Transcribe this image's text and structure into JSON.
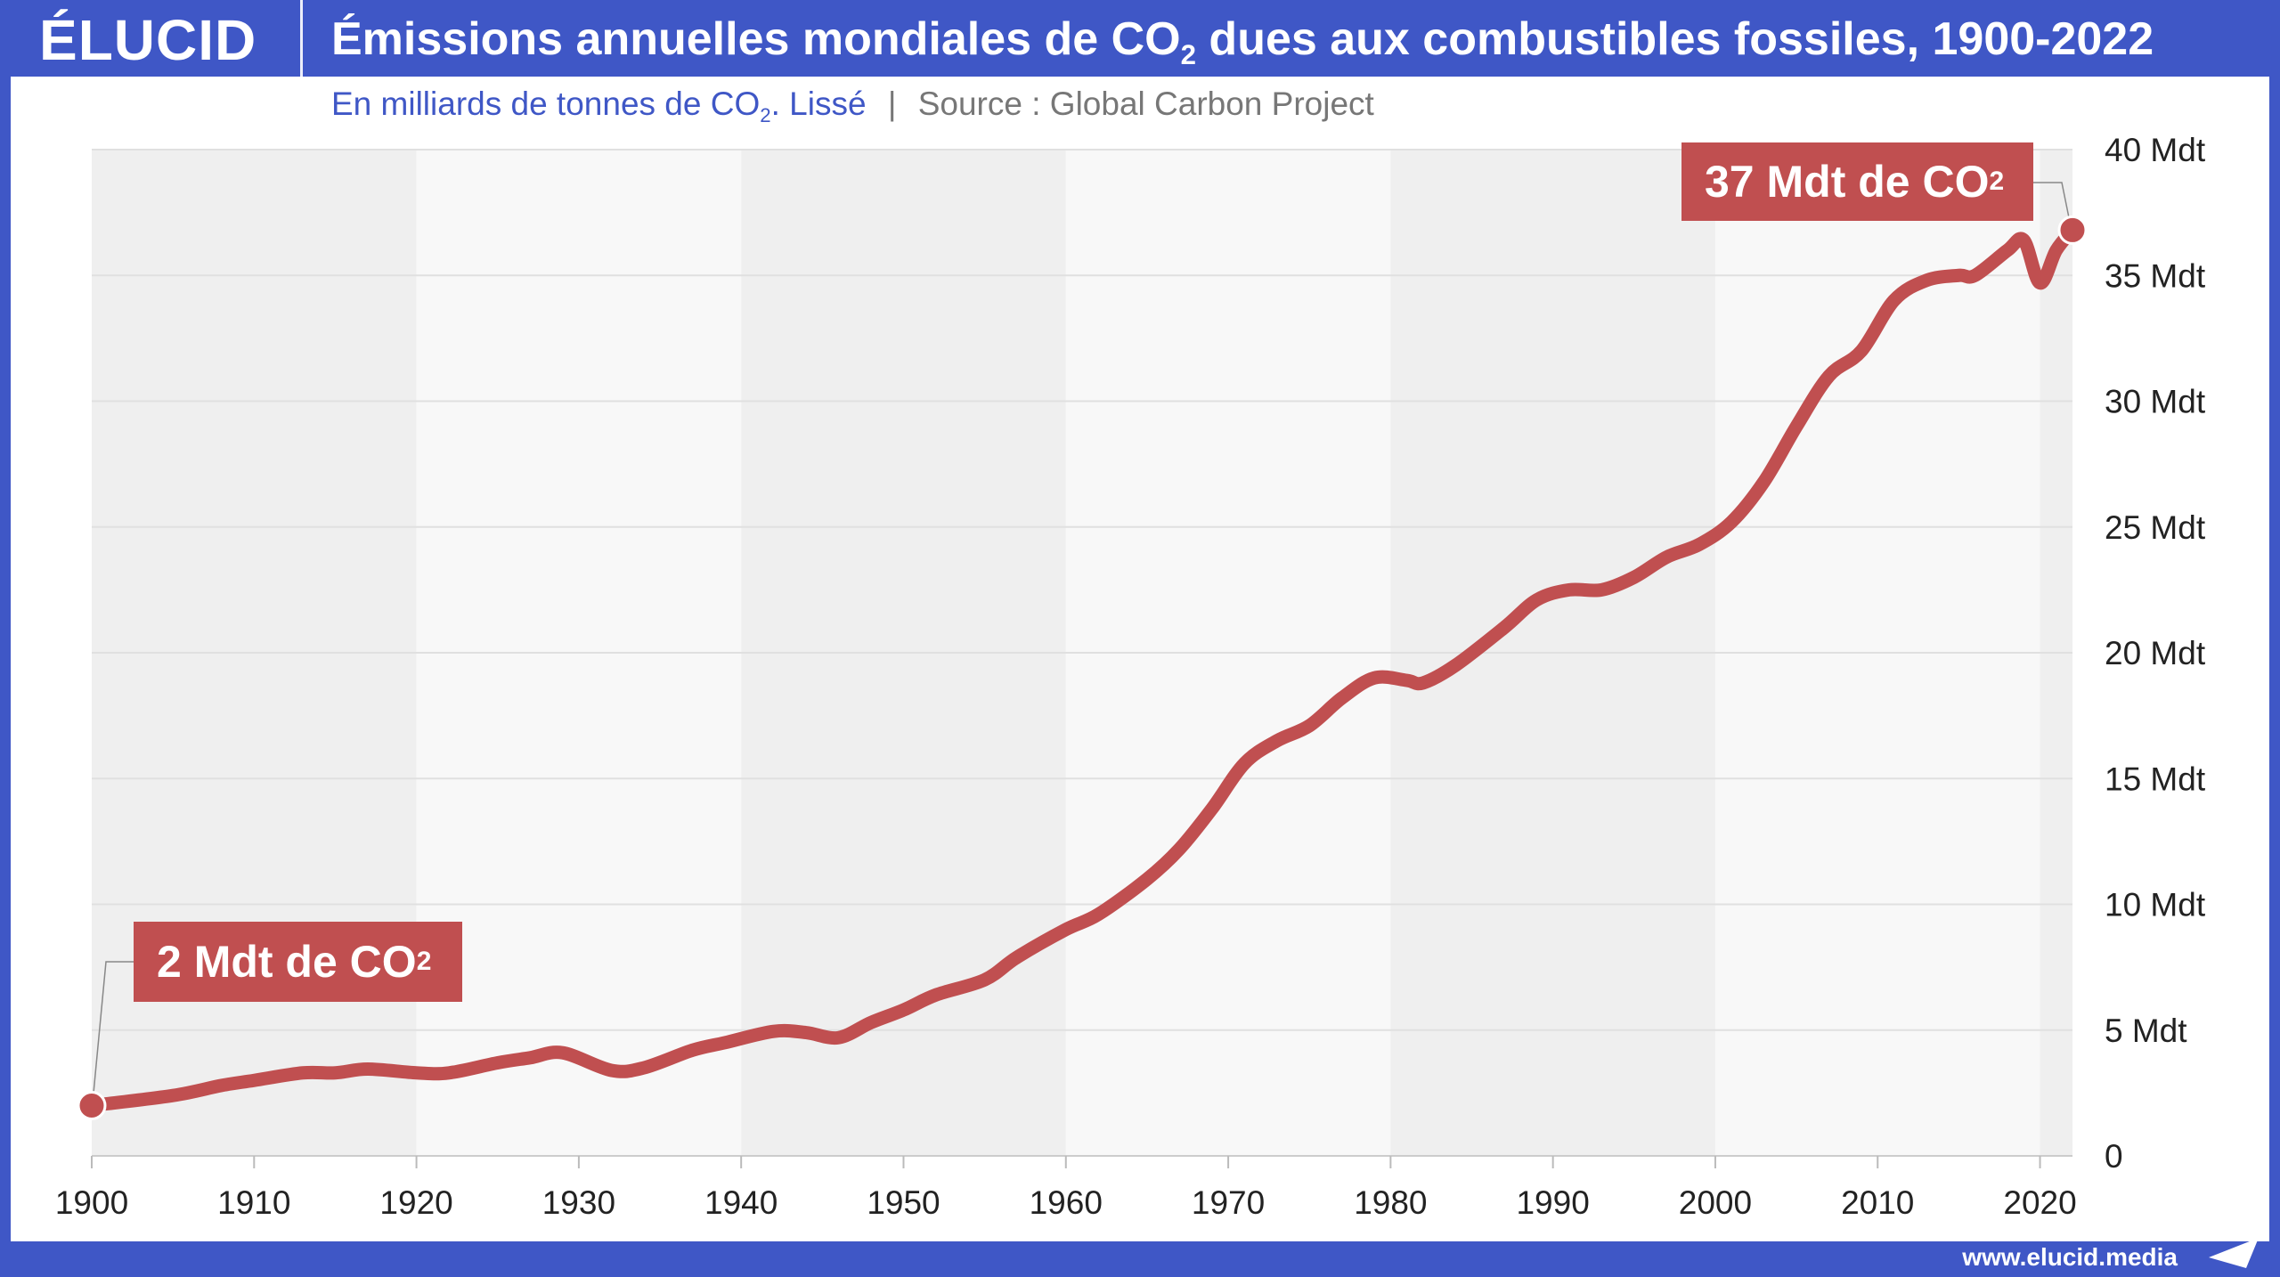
{
  "header": {
    "logo": "ÉLUCID",
    "title_pre": "Émissions annuelles mondiales de CO",
    "title_sub": "2",
    "title_post": " dues aux combustibles fossiles, 1900-2022"
  },
  "subtitle": {
    "pre": "En milliards de tonnes de CO",
    "sub": "2",
    "post": ". Lissé",
    "separator": "|",
    "source": "Source : Global Carbon Project"
  },
  "footer": {
    "url": "www.elucid.media"
  },
  "colors": {
    "brand": "#3f57c6",
    "line": "#c04f50"
  },
  "chart_data": {
    "type": "line",
    "title": "Émissions annuelles mondiales de CO2 dues aux combustibles fossiles, 1900-2022",
    "xlim": [
      1900,
      2022
    ],
    "ylim": [
      0,
      40
    ],
    "grid": true,
    "x_ticks": [
      "1900",
      "1910",
      "1920",
      "1930",
      "1940",
      "1950",
      "1960",
      "1970",
      "1980",
      "1990",
      "2000",
      "2010",
      "2020"
    ],
    "y_ticks": [
      "0",
      "5 Mdt",
      "10 Mdt",
      "15 Mdt",
      "20 Mdt",
      "25 Mdt",
      "30 Mdt",
      "35 Mdt",
      "40 Mdt"
    ],
    "x": [
      1900,
      1905,
      1908,
      1910,
      1913,
      1915,
      1917,
      1920,
      1922,
      1925,
      1927,
      1929,
      1932,
      1934,
      1937,
      1939,
      1942,
      1944,
      1946,
      1948,
      1950,
      1952,
      1955,
      1957,
      1960,
      1962,
      1965,
      1967,
      1969,
      1971,
      1973,
      1975,
      1977,
      1979,
      1981,
      1982,
      1984,
      1987,
      1989,
      1991,
      1993,
      1995,
      1997,
      1999,
      2001,
      2003,
      2005,
      2007,
      2009,
      2011,
      2013,
      2015,
      2016,
      2018,
      2019,
      2020,
      2021,
      2022
    ],
    "y": [
      2.0,
      2.4,
      2.8,
      3.0,
      3.3,
      3.3,
      3.45,
      3.3,
      3.3,
      3.7,
      3.9,
      4.1,
      3.4,
      3.5,
      4.2,
      4.5,
      4.95,
      4.9,
      4.7,
      5.3,
      5.8,
      6.4,
      7.0,
      7.9,
      9.0,
      9.6,
      11.0,
      12.2,
      13.8,
      15.6,
      16.5,
      17.1,
      18.2,
      19.0,
      18.9,
      18.8,
      19.5,
      21.0,
      22.1,
      22.5,
      22.5,
      23.0,
      23.8,
      24.3,
      25.2,
      26.8,
      29.0,
      31.0,
      32.0,
      34.0,
      34.8,
      35.0,
      35.0,
      36.0,
      36.4,
      34.7,
      36.0,
      36.8
    ],
    "annotations": [
      {
        "year": 1900,
        "pre": "2 Mdt de CO",
        "sub": "2"
      },
      {
        "year": 2022,
        "pre": "37 Mdt de CO",
        "sub": "2"
      }
    ]
  }
}
